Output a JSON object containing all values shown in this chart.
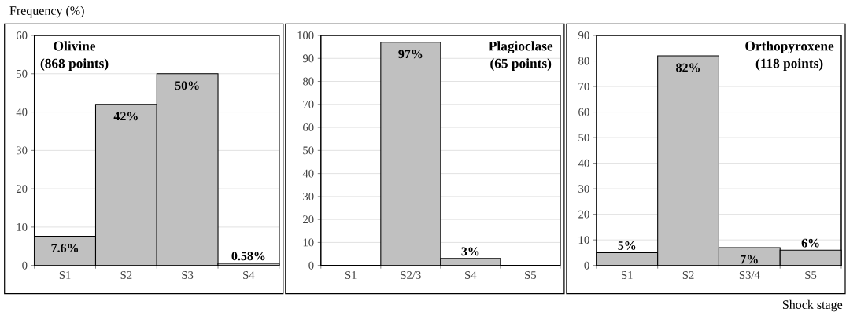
{
  "chart_data": [
    {
      "type": "bar",
      "title": "Olivine",
      "subtitle": "(868 points)",
      "ylabel": "Frequency (%)",
      "categories": [
        "S1",
        "S2",
        "S3",
        "S4"
      ],
      "values": [
        7.6,
        42,
        50,
        0.58
      ],
      "value_labels": [
        "7.6%",
        "42%",
        "50%",
        "0.58%"
      ],
      "color": "#c0c0c0",
      "ylim": [
        0,
        60
      ],
      "yticks": [
        0,
        10,
        20,
        30,
        40,
        50,
        60
      ],
      "grid": "y"
    },
    {
      "type": "bar",
      "title": "Plagioclase",
      "subtitle": "(65 points)",
      "categories": [
        "S1",
        "S2/3",
        "S4",
        "S5"
      ],
      "values": [
        null,
        97,
        3,
        null
      ],
      "value_labels": [
        null,
        "97%",
        "3%",
        null
      ],
      "color": "#c0c0c0",
      "ylim": [
        0,
        100
      ],
      "yticks": [
        0,
        10,
        20,
        30,
        40,
        50,
        60,
        70,
        80,
        90,
        100
      ],
      "grid": "y"
    },
    {
      "type": "bar",
      "title": "Orthopyroxene",
      "subtitle": "(118 points)",
      "xlabel": "Shock stage",
      "categories": [
        "S1",
        "S2",
        "S3/4",
        "S5"
      ],
      "values": [
        5,
        82,
        7,
        6
      ],
      "value_labels": [
        "5%",
        "82%",
        "7%",
        "6%"
      ],
      "color": "#c0c0c0",
      "ylim": [
        0,
        90
      ],
      "yticks": [
        0,
        10,
        20,
        30,
        40,
        50,
        60,
        70,
        80,
        90
      ],
      "grid": "y"
    }
  ]
}
